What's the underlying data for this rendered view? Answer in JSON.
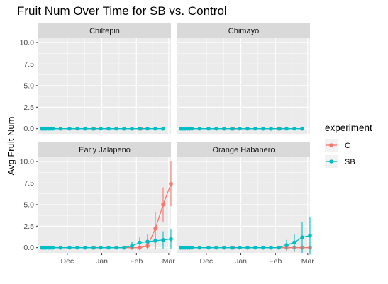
{
  "chart_data": {
    "type": "line",
    "title": "Fruit Num Over Time for SB vs. Control",
    "xlabel": "",
    "ylabel": "Avg Fruit Num",
    "x_tick_labels": [
      "Dec",
      "Jan",
      "Feb",
      "Mar"
    ],
    "x_ticks": [
      "2019-12-01",
      "2020-01-01",
      "2020-02-01",
      "2020-03-01"
    ],
    "y_ticks": [
      0.0,
      2.5,
      5.0,
      7.5,
      10.0
    ],
    "y_tick_labels": [
      "0.0",
      "2.5",
      "5.0",
      "7.5",
      "10.0"
    ],
    "xlim": [
      "2019-11-05",
      "2020-03-03"
    ],
    "ylim": [
      -0.6,
      10.5
    ],
    "grid": true,
    "legend": {
      "title": "experiment",
      "position": "right"
    },
    "series_colors": {
      "C": "#F8766D",
      "SB": "#00BFC4"
    },
    "panels": [
      {
        "name": "Chiltepin",
        "series": [
          {
            "name": "C",
            "points": [
              {
                "x": "2019-11-14",
                "y": 0
              },
              {
                "x": "2019-12-25",
                "y": 0
              },
              {
                "x": "2020-02-05",
                "y": 0
              }
            ]
          },
          {
            "name": "SB",
            "points": [
              {
                "x": "2019-11-08",
                "y": 0
              },
              {
                "x": "2019-11-10",
                "y": 0
              },
              {
                "x": "2019-11-12",
                "y": 0
              },
              {
                "x": "2019-11-14",
                "y": 0
              },
              {
                "x": "2019-11-16",
                "y": 0
              },
              {
                "x": "2019-11-18",
                "y": 0
              },
              {
                "x": "2019-11-25",
                "y": 0
              },
              {
                "x": "2019-12-03",
                "y": 0
              },
              {
                "x": "2019-12-10",
                "y": 0
              },
              {
                "x": "2019-12-17",
                "y": 0
              },
              {
                "x": "2019-12-24",
                "y": 0
              },
              {
                "x": "2019-12-31",
                "y": 0
              },
              {
                "x": "2020-01-07",
                "y": 0
              },
              {
                "x": "2020-01-14",
                "y": 0
              },
              {
                "x": "2020-01-21",
                "y": 0
              },
              {
                "x": "2020-01-28",
                "y": 0
              },
              {
                "x": "2020-02-04",
                "y": 0
              },
              {
                "x": "2020-02-11",
                "y": 0
              },
              {
                "x": "2020-02-18",
                "y": 0
              },
              {
                "x": "2020-02-25",
                "y": 0
              }
            ]
          }
        ]
      },
      {
        "name": "Chimayo",
        "series": [
          {
            "name": "C",
            "points": [
              {
                "x": "2019-11-14",
                "y": 0
              },
              {
                "x": "2019-12-25",
                "y": 0
              },
              {
                "x": "2020-02-05",
                "y": 0
              }
            ]
          },
          {
            "name": "SB",
            "points": [
              {
                "x": "2019-11-08",
                "y": 0
              },
              {
                "x": "2019-11-10",
                "y": 0
              },
              {
                "x": "2019-11-12",
                "y": 0
              },
              {
                "x": "2019-11-14",
                "y": 0
              },
              {
                "x": "2019-11-16",
                "y": 0
              },
              {
                "x": "2019-11-18",
                "y": 0
              },
              {
                "x": "2019-11-25",
                "y": 0
              },
              {
                "x": "2019-12-03",
                "y": 0
              },
              {
                "x": "2019-12-10",
                "y": 0
              },
              {
                "x": "2019-12-17",
                "y": 0
              },
              {
                "x": "2019-12-24",
                "y": 0
              },
              {
                "x": "2019-12-31",
                "y": 0
              },
              {
                "x": "2020-01-07",
                "y": 0
              },
              {
                "x": "2020-01-14",
                "y": 0
              },
              {
                "x": "2020-01-21",
                "y": 0
              },
              {
                "x": "2020-01-28",
                "y": 0
              },
              {
                "x": "2020-02-04",
                "y": 0
              },
              {
                "x": "2020-02-11",
                "y": 0
              },
              {
                "x": "2020-02-18",
                "y": 0
              },
              {
                "x": "2020-02-25",
                "y": 0
              }
            ]
          }
        ]
      },
      {
        "name": "Early Jalapeno",
        "series": [
          {
            "name": "C",
            "points": [
              {
                "x": "2019-11-14",
                "y": 0
              },
              {
                "x": "2019-12-25",
                "y": 0
              },
              {
                "x": "2020-01-28",
                "y": 0
              },
              {
                "x": "2020-02-04",
                "y": 0,
                "lo": -0.3,
                "hi": 0.3
              },
              {
                "x": "2020-02-11",
                "y": 0.2,
                "lo": -0.2,
                "hi": 0.6
              },
              {
                "x": "2020-02-18",
                "y": 2.2,
                "lo": 0.3,
                "hi": 4.1
              },
              {
                "x": "2020-02-25",
                "y": 5.0,
                "lo": 3.0,
                "hi": 7.0
              },
              {
                "x": "2020-03-03",
                "y": 7.4,
                "lo": 4.8,
                "hi": 10.0
              }
            ]
          },
          {
            "name": "SB",
            "points": [
              {
                "x": "2019-11-08",
                "y": 0
              },
              {
                "x": "2019-11-10",
                "y": 0
              },
              {
                "x": "2019-11-12",
                "y": 0
              },
              {
                "x": "2019-11-14",
                "y": 0
              },
              {
                "x": "2019-11-16",
                "y": 0
              },
              {
                "x": "2019-11-18",
                "y": 0
              },
              {
                "x": "2019-11-25",
                "y": 0
              },
              {
                "x": "2019-12-03",
                "y": 0
              },
              {
                "x": "2019-12-10",
                "y": 0
              },
              {
                "x": "2019-12-17",
                "y": 0
              },
              {
                "x": "2019-12-24",
                "y": 0
              },
              {
                "x": "2019-12-31",
                "y": 0
              },
              {
                "x": "2020-01-07",
                "y": 0
              },
              {
                "x": "2020-01-14",
                "y": 0
              },
              {
                "x": "2020-01-21",
                "y": 0
              },
              {
                "x": "2020-01-28",
                "y": 0.2,
                "lo": -0.1,
                "hi": 0.7
              },
              {
                "x": "2020-02-04",
                "y": 0.6,
                "lo": 0.0,
                "hi": 1.2
              },
              {
                "x": "2020-02-11",
                "y": 0.7,
                "lo": -0.1,
                "hi": 1.6
              },
              {
                "x": "2020-02-18",
                "y": 0.8,
                "lo": -0.2,
                "hi": 1.8
              },
              {
                "x": "2020-02-25",
                "y": 0.9,
                "lo": -0.1,
                "hi": 1.9
              },
              {
                "x": "2020-03-03",
                "y": 1.0,
                "lo": -0.1,
                "hi": 2.1
              }
            ]
          }
        ]
      },
      {
        "name": "Orange Habanero",
        "series": [
          {
            "name": "C",
            "points": [
              {
                "x": "2019-11-14",
                "y": 0
              },
              {
                "x": "2019-12-25",
                "y": 0
              },
              {
                "x": "2020-02-04",
                "y": 0
              },
              {
                "x": "2020-02-11",
                "y": 0,
                "lo": -0.4,
                "hi": 0.4
              },
              {
                "x": "2020-02-18",
                "y": 0,
                "lo": -0.5,
                "hi": 0.5
              },
              {
                "x": "2020-02-25",
                "y": 0,
                "lo": -0.6,
                "hi": 0.6
              },
              {
                "x": "2020-03-03",
                "y": 0,
                "lo": -0.6,
                "hi": 0.6
              }
            ]
          },
          {
            "name": "SB",
            "points": [
              {
                "x": "2019-11-08",
                "y": 0
              },
              {
                "x": "2019-11-10",
                "y": 0
              },
              {
                "x": "2019-11-12",
                "y": 0
              },
              {
                "x": "2019-11-14",
                "y": 0
              },
              {
                "x": "2019-11-16",
                "y": 0
              },
              {
                "x": "2019-11-18",
                "y": 0
              },
              {
                "x": "2019-11-25",
                "y": 0
              },
              {
                "x": "2019-12-03",
                "y": 0
              },
              {
                "x": "2019-12-10",
                "y": 0
              },
              {
                "x": "2019-12-17",
                "y": 0
              },
              {
                "x": "2019-12-24",
                "y": 0
              },
              {
                "x": "2019-12-31",
                "y": 0
              },
              {
                "x": "2020-01-07",
                "y": 0
              },
              {
                "x": "2020-01-14",
                "y": 0
              },
              {
                "x": "2020-01-21",
                "y": 0
              },
              {
                "x": "2020-01-28",
                "y": 0
              },
              {
                "x": "2020-02-04",
                "y": 0
              },
              {
                "x": "2020-02-11",
                "y": 0.3,
                "lo": -0.3,
                "hi": 0.9
              },
              {
                "x": "2020-02-18",
                "y": 0.6,
                "lo": -0.4,
                "hi": 1.6
              },
              {
                "x": "2020-02-25",
                "y": 1.2,
                "lo": -0.6,
                "hi": 3.0
              },
              {
                "x": "2020-03-03",
                "y": 1.4,
                "lo": -0.8,
                "hi": 3.6
              }
            ]
          }
        ]
      }
    ]
  }
}
